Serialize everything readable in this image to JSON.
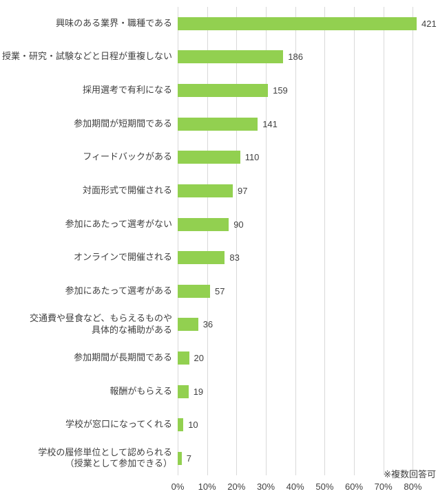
{
  "colors": {
    "bar": "#92d050",
    "gridline": "#d9d9d9",
    "text": "#404040",
    "background": "#ffffff"
  },
  "chart_data": {
    "type": "bar",
    "orientation": "horizontal",
    "title": "",
    "xlabel": "",
    "ylabel": "",
    "grid": true,
    "legend": false,
    "categories": [
      "興味のある業界・職種である",
      "授業・研究・試験などと日程が重複しない",
      "採用選考で有利になる",
      "参加期間が短期間である",
      "フィードバックがある",
      "対面形式で開催される",
      "参加にあたって選考がない",
      "オンラインで開催される",
      "参加にあたって選考がある",
      "交通費や昼食など、もらえるものや\n具体的な補助がある",
      "参加期間が長期間である",
      "報酬がもらえる",
      "学校が窓口になってくれる",
      "学校の履修単位として認められる\n（授業として参加できる）"
    ],
    "values": [
      421,
      186,
      159,
      141,
      110,
      97,
      90,
      83,
      57,
      36,
      20,
      19,
      10,
      7
    ],
    "x_tick_labels": [
      "0%",
      "10%",
      "20%",
      "30%",
      "40%",
      "50%",
      "60%",
      "70%",
      "80%"
    ],
    "x_tick_step_percent": 10,
    "annotation": "※複数回答可"
  }
}
